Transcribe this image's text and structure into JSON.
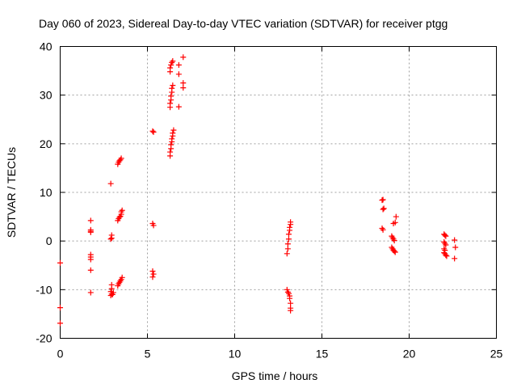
{
  "chart_data": {
    "type": "scatter",
    "title": "Day 060 of 2023, Sidereal Day-to-day VTEC variation (SDTVAR) for receiver ptgg",
    "xlabel": "GPS time / hours",
    "ylabel": "SDTVAR / TECUs",
    "xlim": [
      0,
      25
    ],
    "ylim": [
      -20,
      40
    ],
    "xticks": [
      0,
      5,
      10,
      15,
      20,
      25
    ],
    "yticks": [
      -20,
      -10,
      0,
      10,
      20,
      30,
      40
    ],
    "grid": true,
    "marker": "+",
    "color": "#ff0000",
    "series": [
      {
        "name": "SDTVAR",
        "points": [
          [
            0.0,
            -4.5
          ],
          [
            0.0,
            -13.7
          ],
          [
            0.0,
            -16.9
          ],
          [
            1.75,
            4.2
          ],
          [
            1.75,
            2.3
          ],
          [
            1.75,
            1.8
          ],
          [
            1.75,
            2.0
          ],
          [
            1.75,
            -2.8
          ],
          [
            1.75,
            -3.3
          ],
          [
            1.75,
            -3.8
          ],
          [
            1.75,
            -6.0
          ],
          [
            1.75,
            -10.6
          ],
          [
            2.9,
            11.8
          ],
          [
            2.95,
            1.2
          ],
          [
            2.95,
            0.6
          ],
          [
            2.9,
            0.4
          ],
          [
            2.95,
            -9.0
          ],
          [
            2.95,
            -9.8
          ],
          [
            2.9,
            -10.4
          ],
          [
            2.95,
            -10.9
          ],
          [
            2.9,
            -11.2
          ],
          [
            3.0,
            -11.0
          ],
          [
            3.05,
            -10.6
          ],
          [
            3.3,
            15.8
          ],
          [
            3.35,
            16.2
          ],
          [
            3.4,
            16.5
          ],
          [
            3.45,
            16.7
          ],
          [
            3.5,
            17.0
          ],
          [
            3.3,
            4.2
          ],
          [
            3.35,
            4.6
          ],
          [
            3.4,
            4.9
          ],
          [
            3.45,
            5.1
          ],
          [
            3.5,
            5.5
          ],
          [
            3.5,
            6.0
          ],
          [
            3.55,
            6.3
          ],
          [
            3.3,
            -9.2
          ],
          [
            3.35,
            -8.8
          ],
          [
            3.4,
            -8.5
          ],
          [
            3.45,
            -8.2
          ],
          [
            3.5,
            -7.9
          ],
          [
            3.55,
            -7.5
          ],
          [
            5.3,
            22.6
          ],
          [
            5.35,
            22.4
          ],
          [
            5.3,
            3.6
          ],
          [
            5.35,
            3.2
          ],
          [
            5.3,
            -6.2
          ],
          [
            5.35,
            -6.8
          ],
          [
            5.3,
            -7.4
          ],
          [
            6.3,
            17.5
          ],
          [
            6.3,
            18.3
          ],
          [
            6.35,
            19.0
          ],
          [
            6.35,
            19.8
          ],
          [
            6.4,
            20.4
          ],
          [
            6.4,
            21.0
          ],
          [
            6.45,
            21.6
          ],
          [
            6.45,
            22.2
          ],
          [
            6.5,
            22.8
          ],
          [
            6.3,
            27.5
          ],
          [
            6.3,
            28.3
          ],
          [
            6.35,
            29.0
          ],
          [
            6.35,
            29.8
          ],
          [
            6.4,
            30.6
          ],
          [
            6.4,
            31.4
          ],
          [
            6.45,
            32.0
          ],
          [
            6.3,
            34.8
          ],
          [
            6.3,
            35.6
          ],
          [
            6.35,
            36.2
          ],
          [
            6.4,
            36.7
          ],
          [
            6.45,
            37.0
          ],
          [
            6.8,
            27.6
          ],
          [
            6.8,
            34.3
          ],
          [
            6.8,
            36.2
          ],
          [
            7.05,
            37.8
          ],
          [
            7.05,
            32.5
          ],
          [
            7.05,
            31.5
          ],
          [
            13.0,
            -10.0
          ],
          [
            13.05,
            -10.5
          ],
          [
            13.1,
            -10.8
          ],
          [
            13.15,
            -11.3
          ],
          [
            13.15,
            -11.8
          ],
          [
            13.2,
            -12.8
          ],
          [
            13.2,
            -13.8
          ],
          [
            13.2,
            -14.3
          ],
          [
            13.0,
            -2.6
          ],
          [
            13.05,
            -1.6
          ],
          [
            13.05,
            -0.6
          ],
          [
            13.1,
            0.4
          ],
          [
            13.1,
            1.4
          ],
          [
            13.15,
            2.2
          ],
          [
            13.15,
            2.8
          ],
          [
            13.2,
            3.4
          ],
          [
            13.2,
            3.9
          ],
          [
            18.45,
            8.4
          ],
          [
            18.5,
            8.5
          ],
          [
            18.5,
            6.5
          ],
          [
            18.55,
            6.7
          ],
          [
            18.45,
            2.6
          ],
          [
            18.5,
            2.3
          ],
          [
            19.0,
            1.0
          ],
          [
            19.05,
            0.7
          ],
          [
            19.1,
            0.4
          ],
          [
            19.15,
            0.1
          ],
          [
            19.0,
            -1.3
          ],
          [
            19.05,
            -1.6
          ],
          [
            19.1,
            -1.9
          ],
          [
            19.15,
            -2.1
          ],
          [
            19.2,
            -2.3
          ],
          [
            19.1,
            3.6
          ],
          [
            19.2,
            3.8
          ],
          [
            19.25,
            5.0
          ],
          [
            22.0,
            1.4
          ],
          [
            22.05,
            1.2
          ],
          [
            22.1,
            1.0
          ],
          [
            22.0,
            -0.2
          ],
          [
            22.05,
            -0.5
          ],
          [
            22.1,
            -0.8
          ],
          [
            22.0,
            -1.6
          ],
          [
            22.05,
            -1.9
          ],
          [
            22.0,
            -2.4
          ],
          [
            22.05,
            -2.6
          ],
          [
            22.1,
            -2.9
          ],
          [
            22.15,
            -3.1
          ],
          [
            22.6,
            0.2
          ],
          [
            22.65,
            -1.3
          ],
          [
            22.6,
            -3.6
          ]
        ]
      }
    ]
  }
}
